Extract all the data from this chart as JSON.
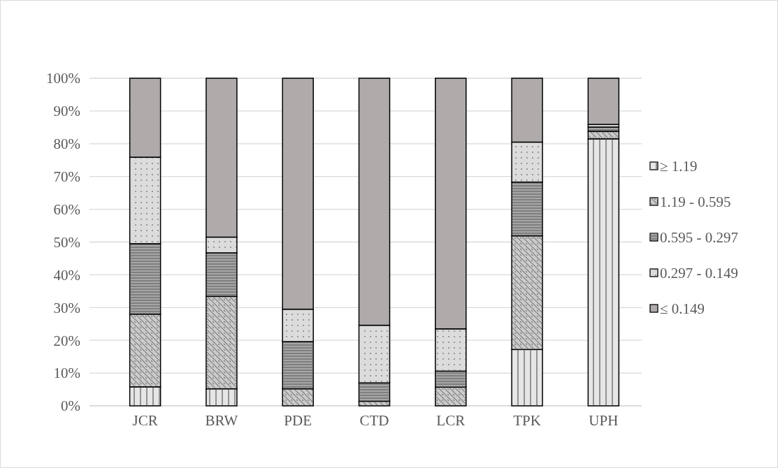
{
  "chart_data": {
    "type": "bar",
    "stacked": true,
    "categories": [
      "JCR",
      "BRW",
      "PDE",
      "CTD",
      "LCR",
      "TPK",
      "UPH"
    ],
    "series": [
      {
        "name": "≥ 1.19",
        "color": "#e6e6e6",
        "values": [
          5.8,
          5.2,
          0,
          0,
          0,
          17.2,
          81.5
        ]
      },
      {
        "name": "1.19 - 0.595",
        "color": "#cccccc",
        "values": [
          22.2,
          28.2,
          5.2,
          1.4,
          5.7,
          34.7,
          2.3
        ]
      },
      {
        "name": "0.595 - 0.297",
        "color": "#a6a6a6",
        "values": [
          21.5,
          13.3,
          14.4,
          5.6,
          4.9,
          16.4,
          1.3
        ]
      },
      {
        "name": "0.297 - 0.149",
        "color": "#dcdcdc",
        "values": [
          26.4,
          4.8,
          9.9,
          17.6,
          12.9,
          12.2,
          0.8
        ]
      },
      {
        "name": "≤ 0.149",
        "color": "#afabab",
        "values": [
          24.1,
          48.5,
          70.5,
          75.4,
          76.5,
          19.5,
          14.1
        ]
      }
    ],
    "ylim": [
      0,
      100
    ],
    "yticks": [
      {
        "value": 0,
        "label": "0%"
      },
      {
        "value": 10,
        "label": "10%"
      },
      {
        "value": 20,
        "label": "20%"
      },
      {
        "value": 30,
        "label": "30%"
      },
      {
        "value": 40,
        "label": "40%"
      },
      {
        "value": 50,
        "label": "50%"
      },
      {
        "value": 60,
        "label": "60%"
      },
      {
        "value": 70,
        "label": "70%"
      },
      {
        "value": 80,
        "label": "80%"
      },
      {
        "value": 90,
        "label": "90%"
      },
      {
        "value": 100,
        "label": "100%"
      }
    ],
    "grid": "y",
    "legend": "right"
  }
}
